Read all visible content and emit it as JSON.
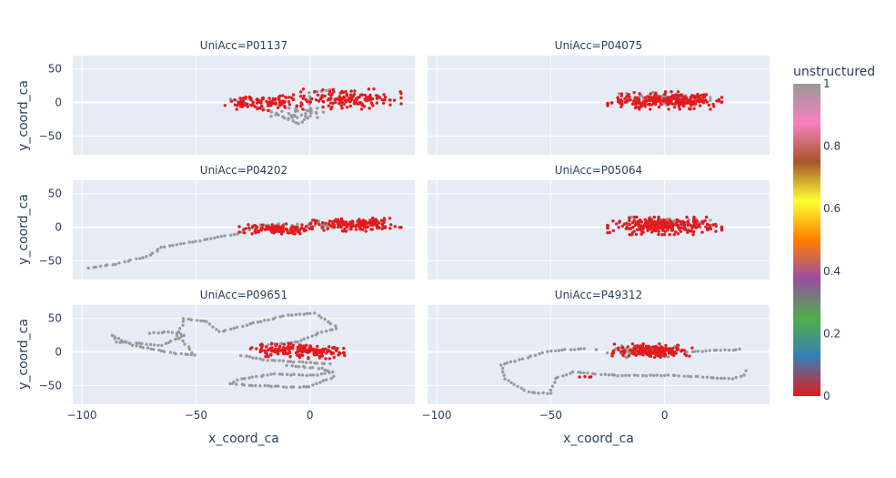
{
  "chart_data": {
    "type": "scatter",
    "layout": "facet-grid-3x2",
    "xlabel": "x_coord_ca",
    "ylabel": "y_coord_ca",
    "xlim": [
      -104,
      46
    ],
    "ylim": [
      -78,
      70
    ],
    "x_ticks": [
      -100,
      -50,
      0
    ],
    "y_ticks": [
      -50,
      0,
      50
    ],
    "x_tick_labels": [
      "−100",
      "−50",
      "0"
    ],
    "y_tick_labels": [
      "−50",
      "0",
      "50"
    ],
    "color_variable": "unstructured",
    "colorscale": [
      {
        "t": 0.0,
        "color": "#e41a1c"
      },
      {
        "t": 0.125,
        "color": "#377eb8"
      },
      {
        "t": 0.25,
        "color": "#4daf4a"
      },
      {
        "t": 0.375,
        "color": "#984ea3"
      },
      {
        "t": 0.5,
        "color": "#ff7f00"
      },
      {
        "t": 0.625,
        "color": "#ffff33"
      },
      {
        "t": 0.75,
        "color": "#a65628"
      },
      {
        "t": 0.875,
        "color": "#f781bf"
      },
      {
        "t": 1.0,
        "color": "#999999"
      }
    ],
    "colorbar_ticks": [
      "0",
      "0.2",
      "0.4",
      "0.6",
      "0.8",
      "1"
    ],
    "colorbar_tick_values": [
      0,
      0.2,
      0.4,
      0.6,
      0.8,
      1
    ],
    "structured_color": "#e41a1c",
    "unstructured_color": "#999999",
    "facets": [
      {
        "title": "UniAcc=P01137",
        "structured_blobs": [
          {
            "cx": -20,
            "cy": 0,
            "rx": 19,
            "ry": 12,
            "n": 110
          },
          {
            "cx": 18,
            "cy": 5,
            "rx": 22,
            "ry": 15,
            "n": 150
          }
        ],
        "unstructured_paths": [
          [
            [
              -35,
              5
            ],
            [
              -18,
              -12
            ],
            [
              -5,
              -32
            ],
            [
              0,
              -20
            ],
            [
              0,
              15
            ],
            [
              12,
              20
            ]
          ]
        ],
        "unstructured_blobs": [
          {
            "cx": -5,
            "cy": -15,
            "rx": 12,
            "ry": 10,
            "n": 30
          }
        ]
      },
      {
        "title": "UniAcc=P04075",
        "structured_blobs": [
          {
            "cx": 0,
            "cy": 3,
            "rx": 25,
            "ry": 13,
            "n": 260
          }
        ],
        "unstructured_paths": [],
        "unstructured_blobs": [
          {
            "cx": 0,
            "cy": 5,
            "rx": 20,
            "ry": 10,
            "n": 70
          }
        ]
      },
      {
        "title": "UniAcc=P04202",
        "structured_blobs": [
          {
            "cx": -15,
            "cy": -3,
            "rx": 16,
            "ry": 8,
            "n": 110
          },
          {
            "cx": 20,
            "cy": 4,
            "rx": 20,
            "ry": 10,
            "n": 150
          }
        ],
        "unstructured_paths": [
          [
            [
              -97,
              -61
            ],
            [
              -85,
              -55
            ],
            [
              -70,
              -42
            ],
            [
              -65,
              -30
            ],
            [
              -45,
              -18
            ],
            [
              -32,
              -10
            ],
            [
              -22,
              3
            ],
            [
              -10,
              5
            ]
          ]
        ],
        "unstructured_blobs": [
          {
            "cx": 5,
            "cy": 2,
            "rx": 25,
            "ry": 8,
            "n": 40
          }
        ]
      },
      {
        "title": "UniAcc=P05064",
        "structured_blobs": [
          {
            "cx": 0,
            "cy": 2,
            "rx": 25,
            "ry": 13,
            "n": 260
          }
        ],
        "unstructured_paths": [],
        "unstructured_blobs": [
          {
            "cx": 0,
            "cy": 5,
            "rx": 20,
            "ry": 10,
            "n": 70
          }
        ]
      },
      {
        "title": "UniAcc=P09651",
        "structured_blobs": [
          {
            "cx": -12,
            "cy": 3,
            "rx": 14,
            "ry": 10,
            "n": 90
          },
          {
            "cx": 2,
            "cy": 0,
            "rx": 14,
            "ry": 10,
            "n": 90
          }
        ],
        "unstructured_paths": [
          [
            [
              -70,
              28
            ],
            [
              -62,
              30
            ],
            [
              -55,
              25
            ],
            [
              -65,
              10
            ],
            [
              -85,
              15
            ],
            [
              -87,
              25
            ],
            [
              -78,
              10
            ],
            [
              -60,
              -2
            ],
            [
              -50,
              -5
            ],
            [
              -58,
              25
            ],
            [
              -55,
              50
            ],
            [
              -45,
              45
            ],
            [
              -40,
              30
            ],
            [
              -28,
              40
            ],
            [
              -10,
              55
            ],
            [
              2,
              58
            ],
            [
              8,
              45
            ],
            [
              12,
              35
            ],
            [
              5,
              30
            ],
            [
              -5,
              15
            ],
            [
              -20,
              10
            ]
          ],
          [
            [
              -10,
              -20
            ],
            [
              5,
              -25
            ],
            [
              10,
              -30
            ],
            [
              2,
              -35
            ],
            [
              -15,
              -33
            ],
            [
              -30,
              -40
            ],
            [
              -35,
              -47
            ],
            [
              -25,
              -50
            ],
            [
              -10,
              -52
            ],
            [
              0,
              -52
            ],
            [
              5,
              -45
            ],
            [
              12,
              -35
            ]
          ],
          [
            [
              -30,
              -5
            ],
            [
              -20,
              -12
            ],
            [
              -5,
              -15
            ],
            [
              10,
              -18
            ]
          ]
        ],
        "unstructured_blobs": []
      },
      {
        "title": "UniAcc=P49312",
        "structured_blobs": [
          {
            "cx": -5,
            "cy": 2,
            "rx": 18,
            "ry": 10,
            "n": 190
          }
        ],
        "unstructured_paths": [
          [
            [
              -35,
              5
            ],
            [
              -50,
              2
            ],
            [
              -62,
              -10
            ],
            [
              -72,
              -20
            ],
            [
              -70,
              -40
            ],
            [
              -60,
              -60
            ],
            [
              -50,
              -62
            ],
            [
              -48,
              -40
            ],
            [
              -40,
              -30
            ],
            [
              -30,
              -33
            ],
            [
              -20,
              -35
            ],
            [
              -10,
              -35
            ],
            [
              5,
              -35
            ],
            [
              20,
              -38
            ],
            [
              30,
              -40
            ],
            [
              35,
              -35
            ],
            [
              36,
              -22
            ]
          ],
          [
            [
              10,
              0
            ],
            [
              20,
              2
            ],
            [
              30,
              3
            ],
            [
              35,
              5
            ]
          ]
        ],
        "structured_paths": [
          [
            [
              -37,
              -37
            ],
            [
              -30,
              -38
            ]
          ]
        ],
        "unstructured_blobs": [
          {
            "cx": -10,
            "cy": 0,
            "rx": 20,
            "ry": 10,
            "n": 40
          }
        ]
      }
    ]
  }
}
